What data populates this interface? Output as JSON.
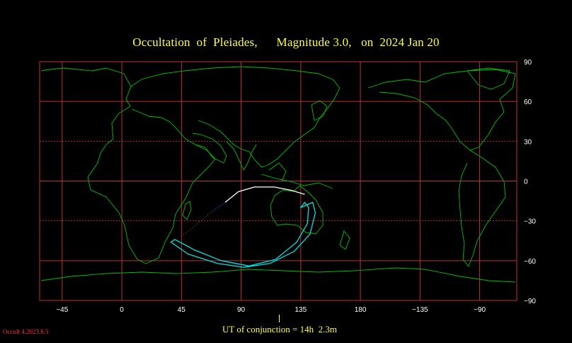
{
  "title": "Occultation  of  Pleiades,      Magnitude 3.0,   on  2024 Jan 20",
  "ut_label": "UT of conjunction = 14h  2.3m",
  "version": "Occult 4.2023.6.5",
  "colors": {
    "background": "#000000",
    "grid": "#c03030",
    "coast": "#00c000",
    "title": "#ffff40",
    "limit_line": "#00e0e0",
    "center_line": "#ffffff",
    "tick_label": "#ffffff",
    "version": "#ff3030"
  },
  "axes": {
    "x_tick_labels": [
      "−45",
      "0",
      "45",
      "90",
      "135",
      "180",
      "−135",
      "−90"
    ],
    "y_tick_labels": [
      "90",
      "60",
      "30",
      "0",
      "−30",
      "−60",
      "−90"
    ]
  },
  "chart_data": {
    "type": "map",
    "projection": "equirectangular",
    "lon_range": [
      -62,
      298
    ],
    "lat_range": [
      -90,
      90
    ],
    "grid_lon": [
      -45,
      0,
      45,
      90,
      135,
      180,
      225,
      270
    ],
    "grid_lat": [
      90,
      60,
      30,
      0,
      -30,
      -60,
      -90
    ],
    "occultation_limit_curve": [
      [
        135,
        -20
      ],
      [
        144,
        -16
      ],
      [
        146,
        -24
      ],
      [
        142,
        -40
      ],
      [
        130,
        -53
      ],
      [
        112,
        -62
      ],
      [
        92,
        -65
      ],
      [
        72,
        -62
      ],
      [
        50,
        -55
      ],
      [
        37,
        -46
      ],
      [
        40,
        -44
      ],
      [
        55,
        -52
      ],
      [
        75,
        -60
      ],
      [
        96,
        -64
      ],
      [
        116,
        -59
      ],
      [
        132,
        -46
      ],
      [
        140,
        -32
      ],
      [
        141,
        -20
      ],
      [
        138,
        -16
      ]
    ],
    "center_line": [
      [
        78,
        -16
      ],
      [
        88,
        -8
      ],
      [
        100,
        -4.5
      ],
      [
        115,
        -4.5
      ],
      [
        128,
        -7
      ],
      [
        138,
        -10
      ]
    ],
    "dotted_extension_blue": [
      [
        68,
        -23
      ],
      [
        78,
        -16
      ]
    ],
    "dotted_extension_red": [
      [
        45,
        -42
      ],
      [
        68,
        -23
      ]
    ]
  }
}
